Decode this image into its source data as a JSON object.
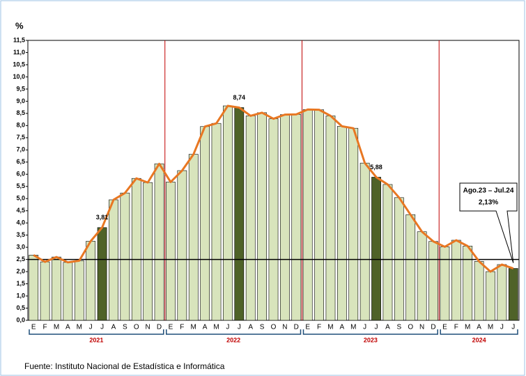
{
  "chart_data": {
    "type": "bar",
    "y_label": "%",
    "categories": [
      "E",
      "F",
      "M",
      "A",
      "M",
      "J",
      "J",
      "A",
      "S",
      "O",
      "N",
      "D",
      "E",
      "F",
      "M",
      "A",
      "M",
      "J",
      "J",
      "A",
      "S",
      "O",
      "N",
      "D",
      "E",
      "F",
      "M",
      "A",
      "M",
      "J",
      "J",
      "A",
      "S",
      "O",
      "N",
      "D",
      "E",
      "F",
      "M",
      "A",
      "M",
      "J",
      "J"
    ],
    "years": [
      "2021",
      "2022",
      "2023",
      "2024"
    ],
    "values": [
      2.68,
      2.4,
      2.6,
      2.38,
      2.45,
      3.25,
      3.81,
      4.95,
      5.23,
      5.83,
      5.66,
      6.43,
      5.68,
      6.15,
      6.82,
      7.96,
      8.09,
      8.81,
      8.74,
      8.4,
      8.53,
      8.28,
      8.45,
      8.46,
      8.66,
      8.65,
      8.4,
      7.97,
      7.89,
      6.46,
      5.88,
      5.58,
      5.04,
      4.34,
      3.64,
      3.24,
      3.02,
      3.29,
      3.05,
      2.42,
      2.0,
      2.29,
      2.13
    ],
    "value_labels": [
      null,
      null,
      null,
      null,
      null,
      null,
      "3,81",
      null,
      null,
      null,
      null,
      null,
      null,
      null,
      null,
      null,
      null,
      null,
      "8,74",
      null,
      null,
      null,
      null,
      null,
      null,
      null,
      null,
      null,
      null,
      null,
      "5,88",
      null,
      null,
      null,
      null,
      null,
      null,
      null,
      null,
      null,
      null,
      null,
      "2,13%"
    ],
    "callout_title": "Ago.23 – Jul.24",
    "color": "#d8e4bc",
    "highlight_color": "#4f6228",
    "highlight": [
      6,
      18,
      30,
      42
    ],
    "line_color": "#e87722",
    "reference_line": 2.5,
    "ylim": [
      0,
      11.5
    ],
    "yticks": [
      {
        "value": 0,
        "label": "0,0"
      },
      {
        "value": 0.5,
        "label": "0,5"
      },
      {
        "value": 1,
        "label": "1,0"
      },
      {
        "value": 1.5,
        "label": "1,5"
      },
      {
        "value": 2,
        "label": "2,0"
      },
      {
        "value": 2.5,
        "label": "2,5"
      },
      {
        "value": 3,
        "label": "3,0"
      },
      {
        "value": 3.5,
        "label": "3,5"
      },
      {
        "value": 4,
        "label": "4,0"
      },
      {
        "value": 4.5,
        "label": "4,5"
      },
      {
        "value": 5,
        "label": "5,0"
      },
      {
        "value": 5.5,
        "label": "5,5"
      },
      {
        "value": 6,
        "label": "6,0"
      },
      {
        "value": 6.5,
        "label": "6,5"
      },
      {
        "value": 7,
        "label": "7,0"
      },
      {
        "value": 7.5,
        "label": "7,5"
      },
      {
        "value": 8,
        "label": "8,0"
      },
      {
        "value": 8.5,
        "label": "8,5"
      },
      {
        "value": 9,
        "label": "9,0"
      },
      {
        "value": 9.5,
        "label": "9,5"
      },
      {
        "value": 10,
        "label": "10,0"
      },
      {
        "value": 10.5,
        "label": "10,5"
      },
      {
        "value": 11,
        "label": "11,0"
      },
      {
        "value": 11.5,
        "label": "11,5"
      }
    ],
    "source": "Fuente: Instituto Nacional de Estadística e Informática"
  }
}
